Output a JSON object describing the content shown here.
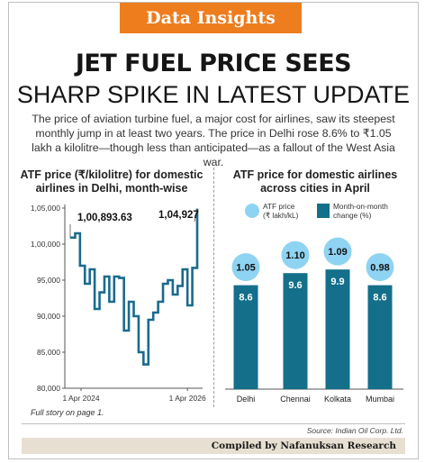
{
  "banner": "Data Insights",
  "headline_line1": "JET FUEL PRICE SEES",
  "headline_line2": "SHARP SPIKE IN LATEST UPDATE",
  "intro": "The price of aviation turbine fuel, a major cost for airlines, saw its steepest monthly jump in at least two years. The price in Delhi rose 8.6% to ₹1.05 lakh a kilolitre—though less than anticipated—as a fallout of the West Asia war.",
  "footnote": "Full story on page 1.",
  "source": "Source: Indian Oil Corp. Ltd.",
  "credit": "Compiled by Nafanuksan Research",
  "colors": {
    "accent": "#ee7d1e",
    "line": "#1b6a8d",
    "bar": "#146f8a",
    "bubble": "#8fd3f2"
  },
  "chart_data": [
    {
      "type": "line",
      "title": "ATF price (₹/kilolitre) for domestic airlines in Delhi, month-wise",
      "xlabel": "",
      "ylabel": "",
      "x_tick_labels": [
        "1 Apr 2024",
        "1 Apr 2026"
      ],
      "y_tick_labels": [
        "1,05,000",
        "1,00,000",
        "95,000",
        "90,000",
        "85,000",
        "80,000"
      ],
      "ylim": [
        80000,
        105000
      ],
      "grid": false,
      "annotations": [
        "1,00,893.63",
        "1,04,927"
      ],
      "series": [
        {
          "values": [
            100894,
            101500,
            97000,
            94500,
            96500,
            91000,
            93300,
            95500,
            92000,
            95500,
            95300,
            88000,
            92000,
            90000,
            85000,
            83300,
            89500,
            90500,
            92000,
            94500,
            95000,
            93000,
            94200,
            96500,
            91500,
            96700,
            104927
          ]
        }
      ]
    },
    {
      "type": "bar",
      "title": "ATF price for domestic airlines across cities in April",
      "categories": [
        "Delhi",
        "Chennai",
        "Kolkata",
        "Mumbai"
      ],
      "legend": [
        "ATF price (₹ lakh/kL)",
        "Month-on-month change (%)"
      ],
      "series": [
        {
          "name": "ATF price (₹ lakh/kL)",
          "values": [
            1.05,
            1.1,
            1.09,
            0.98
          ],
          "labels": [
            "1.05",
            "1.10",
            "1.09",
            "0.98"
          ]
        },
        {
          "name": "Month-on-month change (%)",
          "values": [
            8.6,
            9.6,
            9.9,
            8.6
          ],
          "labels": [
            "8.6",
            "9.6",
            "9.9",
            "8.6"
          ]
        }
      ]
    }
  ]
}
